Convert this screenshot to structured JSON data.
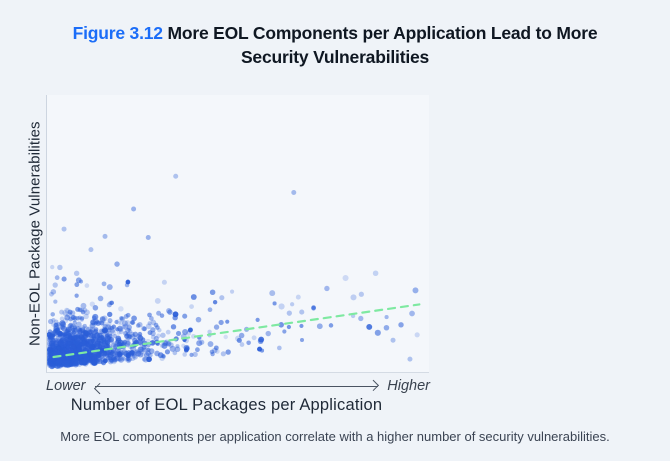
{
  "title": {
    "figure_label": "Figure 3.12",
    "text": "More EOL Components per Application Lead to More Security Vulnerabilities",
    "label_color": "#1b6df8"
  },
  "chart": {
    "y_axis_label": "Non-EOL Package Vulnerabilities",
    "x_axis_title": "Number of EOL Packages per Application",
    "x_low_label": "Lower",
    "x_high_label": "Higher"
  },
  "caption": {
    "text": "More EOL components per application correlate with a higher number of security vulnerabilities."
  },
  "chart_data": {
    "type": "scatter",
    "title": "More EOL Components per Application Lead to More Security Vulnerabilities",
    "xlabel": "Number of EOL Packages per Application",
    "ylabel": "Non-EOL Package Vulnerabilities",
    "x_axis_qualitative": [
      "Lower",
      "Higher"
    ],
    "axis_ticks": "none",
    "legend": "none",
    "grid": false,
    "relationship": "positive correlation; dense cluster of applications at low EOL-package counts near low vulnerability counts, sparser points toward higher counts",
    "point_color": "#2b5ed8",
    "trendline": {
      "style": "dashed",
      "color": "#7ee9a1",
      "x": [
        0.012,
        0.985
      ],
      "y": [
        0.048,
        0.242
      ]
    },
    "highlight_points": [
      {
        "x": 0.337,
        "y": 0.715,
        "a": 0.35
      },
      {
        "x": 0.651,
        "y": 0.655,
        "a": 0.4
      },
      {
        "x": 0.225,
        "y": 0.594,
        "a": 0.45
      },
      {
        "x": 0.149,
        "y": 0.493,
        "a": 0.4
      },
      {
        "x": 0.264,
        "y": 0.489,
        "a": 0.45
      },
      {
        "x": 0.04,
        "y": 0.52,
        "a": 0.35
      },
      {
        "x": 0.56,
        "y": 0.077,
        "a": 0.95
      },
      {
        "x": 0.96,
        "y": 0.04,
        "a": 0.35
      },
      {
        "x": 0.915,
        "y": 0.11,
        "a": 0.35
      }
    ],
    "point_generation": {
      "seed": 1337,
      "n": 1400,
      "clusters": [
        {
          "share": 0.73,
          "x_sigma": 0.1
        },
        {
          "share": 0.22,
          "x_sigma": 0.22
        },
        {
          "share": 0.05,
          "x_min": 0.05,
          "x_max": 0.98,
          "x_pow": 1.25
        }
      ],
      "y": {
        "base": 0.012,
        "sigma0": 0.07,
        "sigma_slope": 0.06,
        "trend_slope": 0.1,
        "outlier_prob": 0.03,
        "outlier_max": 0.32,
        "y_max": 0.73
      },
      "point": {
        "rgb": "43,94,216",
        "alpha_min": 0.16,
        "alpha_range": 0.5,
        "dark_prob": 0.08,
        "dark_boost": 0.3,
        "r_min": 2.0,
        "r_range": 1.1
      }
    }
  }
}
